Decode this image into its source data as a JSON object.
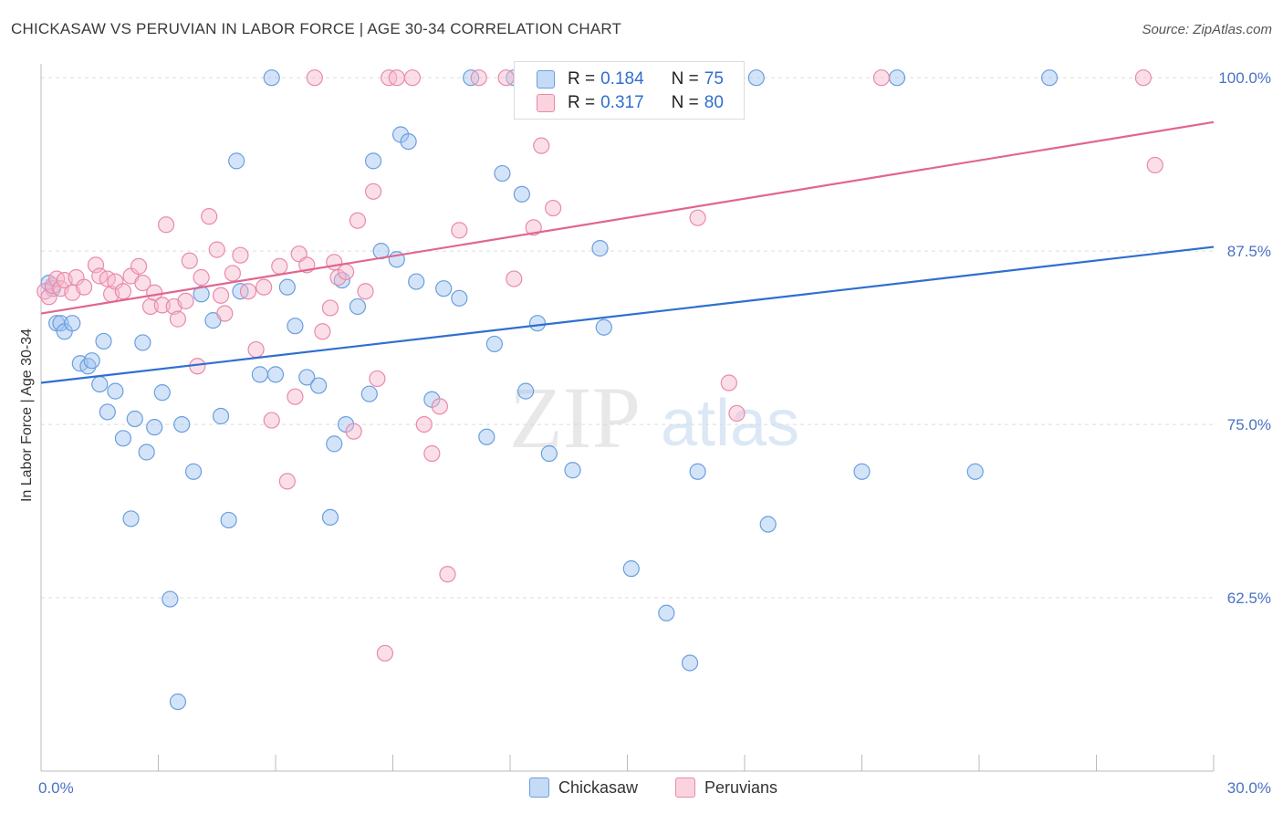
{
  "title": "CHICKASAW VS PERUVIAN IN LABOR FORCE | AGE 30-34 CORRELATION CHART",
  "source": "Source: ZipAtlas.com",
  "watermark": {
    "zip": "ZIP",
    "atlas": "atlas"
  },
  "legend": {
    "items": [
      {
        "name": "Chickasaw",
        "r_label": "R =",
        "r": "0.184",
        "n_label": "N =",
        "n": "75",
        "color": "#9fc3ef",
        "border": "#6a9ee0"
      },
      {
        "name": "Peruvians",
        "r_label": "R =",
        "r": "0.317",
        "n_label": "N =",
        "n": "80",
        "color": "#f6b8cb",
        "border": "#e98aa9"
      }
    ]
  },
  "chart_data": {
    "type": "scatter",
    "xlabel": "",
    "ylabel": "In Labor Force | Age 30-34",
    "xlim": [
      0,
      30
    ],
    "ylim": [
      50,
      101
    ],
    "x_tick_labels": [
      "0.0%",
      "30.0%"
    ],
    "y_ticks": [
      62.5,
      75.0,
      87.5,
      100.0
    ],
    "y_tick_labels": [
      "62.5%",
      "75.0%",
      "87.5%",
      "100.0%"
    ],
    "series": [
      {
        "name": "Chickasaw",
        "color": "#9fc3ef",
        "stroke": "#6a9ee0",
        "trend_color": "#2f6fcf",
        "trend": {
          "x": [
            0,
            30
          ],
          "y": [
            78.0,
            87.8
          ]
        },
        "points": [
          [
            0.2,
            85.2
          ],
          [
            0.3,
            84.8
          ],
          [
            0.4,
            82.3
          ],
          [
            0.5,
            82.3
          ],
          [
            0.6,
            81.7
          ],
          [
            0.8,
            82.3
          ],
          [
            1.0,
            79.4
          ],
          [
            1.2,
            79.2
          ],
          [
            1.3,
            79.6
          ],
          [
            1.5,
            77.9
          ],
          [
            1.6,
            81.0
          ],
          [
            1.7,
            75.9
          ],
          [
            1.9,
            77.4
          ],
          [
            2.1,
            74.0
          ],
          [
            2.3,
            68.2
          ],
          [
            2.4,
            75.4
          ],
          [
            2.6,
            80.9
          ],
          [
            2.7,
            73.0
          ],
          [
            2.9,
            74.8
          ],
          [
            3.1,
            77.3
          ],
          [
            3.3,
            62.4
          ],
          [
            3.5,
            55.0
          ],
          [
            3.6,
            75.0
          ],
          [
            3.9,
            71.6
          ],
          [
            4.1,
            84.4
          ],
          [
            4.4,
            82.5
          ],
          [
            4.6,
            75.6
          ],
          [
            4.8,
            68.1
          ],
          [
            5.0,
            94.0
          ],
          [
            5.1,
            84.6
          ],
          [
            5.6,
            78.6
          ],
          [
            5.9,
            100.0
          ],
          [
            6.0,
            78.6
          ],
          [
            6.3,
            84.9
          ],
          [
            6.5,
            82.1
          ],
          [
            6.8,
            78.4
          ],
          [
            7.1,
            77.8
          ],
          [
            7.4,
            68.3
          ],
          [
            7.5,
            73.6
          ],
          [
            7.7,
            85.4
          ],
          [
            7.8,
            75.0
          ],
          [
            8.1,
            83.5
          ],
          [
            8.4,
            77.2
          ],
          [
            8.5,
            94.0
          ],
          [
            8.7,
            87.5
          ],
          [
            9.1,
            86.9
          ],
          [
            9.2,
            95.9
          ],
          [
            9.4,
            95.4
          ],
          [
            9.6,
            85.3
          ],
          [
            10.0,
            76.8
          ],
          [
            10.3,
            84.8
          ],
          [
            10.7,
            84.1
          ],
          [
            11.0,
            100.0
          ],
          [
            11.4,
            74.1
          ],
          [
            11.6,
            80.8
          ],
          [
            11.8,
            93.1
          ],
          [
            12.1,
            100.0
          ],
          [
            12.3,
            91.6
          ],
          [
            12.4,
            77.4
          ],
          [
            12.7,
            82.3
          ],
          [
            13.0,
            72.9
          ],
          [
            13.6,
            71.7
          ],
          [
            14.3,
            87.7
          ],
          [
            14.4,
            82.0
          ],
          [
            15.1,
            64.6
          ],
          [
            16.0,
            61.4
          ],
          [
            16.6,
            57.8
          ],
          [
            16.8,
            71.6
          ],
          [
            17.1,
            100.0
          ],
          [
            18.3,
            100.0
          ],
          [
            18.6,
            67.8
          ],
          [
            21.0,
            71.6
          ],
          [
            21.9,
            100.0
          ],
          [
            23.9,
            71.6
          ],
          [
            25.8,
            100.0
          ]
        ]
      },
      {
        "name": "Peruvians",
        "color": "#f6b8cb",
        "stroke": "#e98aa9",
        "trend_color": "#e0668f",
        "trend": {
          "x": [
            0,
            30
          ],
          "y": [
            83.0,
            96.8
          ]
        },
        "points": [
          [
            0.1,
            84.6
          ],
          [
            0.2,
            84.2
          ],
          [
            0.3,
            85.0
          ],
          [
            0.4,
            85.5
          ],
          [
            0.5,
            84.8
          ],
          [
            0.6,
            85.4
          ],
          [
            0.8,
            84.5
          ],
          [
            0.9,
            85.6
          ],
          [
            1.1,
            84.9
          ],
          [
            1.4,
            86.5
          ],
          [
            1.5,
            85.7
          ],
          [
            1.7,
            85.5
          ],
          [
            1.8,
            84.4
          ],
          [
            1.9,
            85.3
          ],
          [
            2.1,
            84.6
          ],
          [
            2.3,
            85.7
          ],
          [
            2.5,
            86.4
          ],
          [
            2.6,
            85.2
          ],
          [
            2.8,
            83.5
          ],
          [
            2.9,
            84.5
          ],
          [
            3.1,
            83.6
          ],
          [
            3.2,
            89.4
          ],
          [
            3.4,
            83.5
          ],
          [
            3.5,
            82.6
          ],
          [
            3.7,
            83.9
          ],
          [
            3.8,
            86.8
          ],
          [
            4.0,
            79.2
          ],
          [
            4.1,
            85.6
          ],
          [
            4.3,
            90.0
          ],
          [
            4.5,
            87.6
          ],
          [
            4.6,
            84.3
          ],
          [
            4.7,
            83.0
          ],
          [
            4.9,
            85.9
          ],
          [
            5.1,
            87.2
          ],
          [
            5.3,
            84.6
          ],
          [
            5.5,
            80.4
          ],
          [
            5.7,
            84.9
          ],
          [
            5.9,
            75.3
          ],
          [
            6.1,
            86.4
          ],
          [
            6.3,
            70.9
          ],
          [
            6.5,
            77.0
          ],
          [
            6.6,
            87.3
          ],
          [
            6.8,
            86.5
          ],
          [
            7.0,
            100.0
          ],
          [
            7.2,
            81.7
          ],
          [
            7.4,
            83.4
          ],
          [
            7.5,
            86.7
          ],
          [
            7.6,
            85.6
          ],
          [
            7.8,
            86.0
          ],
          [
            8.0,
            74.5
          ],
          [
            8.1,
            89.7
          ],
          [
            8.3,
            84.6
          ],
          [
            8.5,
            91.8
          ],
          [
            8.6,
            78.3
          ],
          [
            8.8,
            58.5
          ],
          [
            8.9,
            100.0
          ],
          [
            9.1,
            100.0
          ],
          [
            9.5,
            100.0
          ],
          [
            9.8,
            75.0
          ],
          [
            10.0,
            72.9
          ],
          [
            10.2,
            76.3
          ],
          [
            10.4,
            64.2
          ],
          [
            10.7,
            89.0
          ],
          [
            11.2,
            100.0
          ],
          [
            11.9,
            100.0
          ],
          [
            12.1,
            85.5
          ],
          [
            12.4,
            100.0
          ],
          [
            12.6,
            89.2
          ],
          [
            12.8,
            95.1
          ],
          [
            13.1,
            90.6
          ],
          [
            13.4,
            100.0
          ],
          [
            14.1,
            100.0
          ],
          [
            15.0,
            100.0
          ],
          [
            16.6,
            100.0
          ],
          [
            16.8,
            89.9
          ],
          [
            17.4,
            100.0
          ],
          [
            17.6,
            78.0
          ],
          [
            17.8,
            75.8
          ],
          [
            21.5,
            100.0
          ],
          [
            28.2,
            100.0
          ],
          [
            28.5,
            93.7
          ]
        ]
      }
    ]
  }
}
